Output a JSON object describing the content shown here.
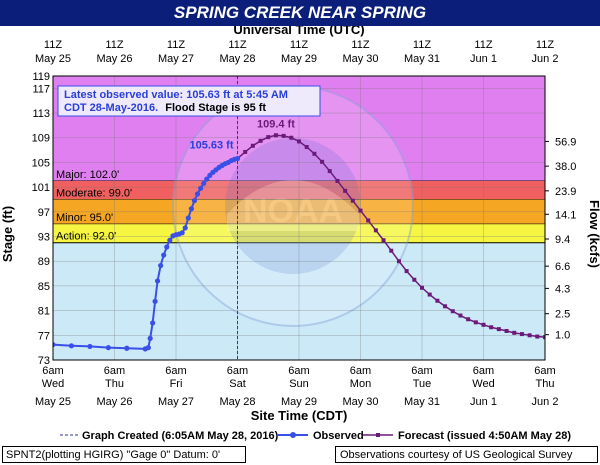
{
  "title": "SPRING CREEK NEAR SPRING",
  "top_axis_title": "Universal Time (UTC)",
  "bottom_axis_title": "Site Time (CDT)",
  "left_axis_title": "Stage (ft)",
  "right_axis_title": "Flow (kcfs)",
  "annotation": {
    "line1": "Latest observed value: 105.63 ft at 5:45 AM",
    "line2": "CDT 28-May-2016.",
    "line2b": "Flood Stage is 95 ft"
  },
  "legend": {
    "graph_created": "Graph Created (6:05AM May 28, 2016)",
    "observed": "Observed",
    "forecast": "Forecast (issued 4:50AM May 28)"
  },
  "footer": {
    "left": "SPNT2(plotting HGIRG) \"Gage 0\" Datum: 0'",
    "right": "Observations courtesy of US Geological Survey"
  },
  "colors": {
    "major": "#e080f0",
    "moderate": "#f06060",
    "minor": "#f5a623",
    "action": "#f5f542",
    "observed": "#3a4fe8",
    "forecast": "#6b1a7a",
    "title_bg": "#0b1f7a",
    "background": "#cce9f8"
  },
  "chart_data": {
    "type": "line",
    "title": "SPRING CREEK NEAR SPRING",
    "xlabel": "Site Time (CDT)",
    "ylabel": "Stage (ft)",
    "y2label": "Flow (kcfs)",
    "ylim": [
      73,
      119
    ],
    "xlim_days": [
      0,
      8
    ],
    "y_ticks": [
      73,
      77,
      81,
      85,
      89,
      93,
      97,
      101,
      105,
      109,
      113,
      117,
      119
    ],
    "y2_ticks": [
      {
        "stage": 77.1,
        "label": "1.0"
      },
      {
        "stage": 80.5,
        "label": "2.5"
      },
      {
        "stage": 84.6,
        "label": "4.3"
      },
      {
        "stage": 88.2,
        "label": "6.6"
      },
      {
        "stage": 92.6,
        "label": "9.4"
      },
      {
        "stage": 96.6,
        "label": "14.1"
      },
      {
        "stage": 100.4,
        "label": "23.9"
      },
      {
        "stage": 104.4,
        "label": "38.0"
      },
      {
        "stage": 108.4,
        "label": "56.9"
      }
    ],
    "bottom_ticks": [
      {
        "time": "6am",
        "day": "Wed",
        "date": "May 25"
      },
      {
        "time": "6am",
        "day": "Thu",
        "date": "May 26"
      },
      {
        "time": "6am",
        "day": "Fri",
        "date": "May 27"
      },
      {
        "time": "6am",
        "day": "Sat",
        "date": "May 28"
      },
      {
        "time": "6am",
        "day": "Sun",
        "date": "May 29"
      },
      {
        "time": "6am",
        "day": "Mon",
        "date": "May 30"
      },
      {
        "time": "6am",
        "day": "Tue",
        "date": "May 31"
      },
      {
        "time": "6am",
        "day": "Wed",
        "date": "Jun 1"
      },
      {
        "time": "6am",
        "day": "Thu",
        "date": "Jun 2"
      }
    ],
    "top_ticks": [
      {
        "time": "11Z",
        "date": "May 25"
      },
      {
        "time": "11Z",
        "date": "May 26"
      },
      {
        "time": "11Z",
        "date": "May 27"
      },
      {
        "time": "11Z",
        "date": "May 28"
      },
      {
        "time": "11Z",
        "date": "May 29"
      },
      {
        "time": "11Z",
        "date": "May 30"
      },
      {
        "time": "11Z",
        "date": "May 31"
      },
      {
        "time": "11Z",
        "date": "Jun 1"
      },
      {
        "time": "11Z",
        "date": "Jun 2"
      }
    ],
    "flood_categories": [
      {
        "name": "Major",
        "label": "Major: 102.0'",
        "from": 102,
        "to": 119
      },
      {
        "name": "Moderate",
        "label": "Moderate: 99.0'",
        "from": 99,
        "to": 102
      },
      {
        "name": "Minor",
        "label": "Minor: 95.0'",
        "from": 95,
        "to": 99
      },
      {
        "name": "Action",
        "label": "Action: 92.0'",
        "from": 92,
        "to": 95
      }
    ],
    "graph_created_day": 3.0,
    "observed_label": "105.63 ft",
    "forecast_peak_label": "109.4 ft",
    "series": [
      {
        "name": "Observed",
        "x": [
          0.0,
          0.3,
          0.6,
          0.9,
          1.2,
          1.5,
          1.55,
          1.58,
          1.62,
          1.66,
          1.7,
          1.75,
          1.8,
          1.85,
          1.9,
          1.95,
          2.0,
          2.05,
          2.1,
          2.15,
          2.2,
          2.25,
          2.3,
          2.35,
          2.4,
          2.45,
          2.5,
          2.55,
          2.6,
          2.65,
          2.7,
          2.75,
          2.8,
          2.85,
          2.9,
          2.95,
          3.0
        ],
        "y": [
          75.5,
          75.3,
          75.2,
          75.0,
          74.9,
          74.8,
          75.0,
          76.5,
          79.0,
          82.5,
          85.8,
          88.3,
          90.0,
          91.3,
          92.4,
          93.1,
          93.3,
          93.4,
          93.6,
          94.4,
          96.0,
          97.5,
          98.8,
          99.9,
          100.8,
          101.6,
          102.3,
          102.9,
          103.4,
          103.8,
          104.2,
          104.5,
          104.8,
          105.0,
          105.3,
          105.5,
          105.63
        ]
      },
      {
        "name": "Forecast",
        "x": [
          3.0,
          3.125,
          3.25,
          3.375,
          3.5,
          3.625,
          3.75,
          3.875,
          4.0,
          4.125,
          4.25,
          4.375,
          4.5,
          4.625,
          4.75,
          4.875,
          5.0,
          5.125,
          5.25,
          5.375,
          5.5,
          5.625,
          5.75,
          5.875,
          6.0,
          6.125,
          6.25,
          6.375,
          6.5,
          6.625,
          6.75,
          6.875,
          7.0,
          7.125,
          7.25,
          7.375,
          7.5,
          7.625,
          7.75,
          7.875,
          8.0
        ],
        "y": [
          105.63,
          106.7,
          107.7,
          108.5,
          109.1,
          109.4,
          109.3,
          109.0,
          108.4,
          107.5,
          106.4,
          105.1,
          103.6,
          102.0,
          100.4,
          98.8,
          97.2,
          95.6,
          94.0,
          92.4,
          90.7,
          89.0,
          87.4,
          86.0,
          84.7,
          83.6,
          82.6,
          81.7,
          80.9,
          80.2,
          79.6,
          79.1,
          78.7,
          78.3,
          78.0,
          77.7,
          77.4,
          77.2,
          77.0,
          76.8,
          76.7
        ]
      }
    ]
  }
}
